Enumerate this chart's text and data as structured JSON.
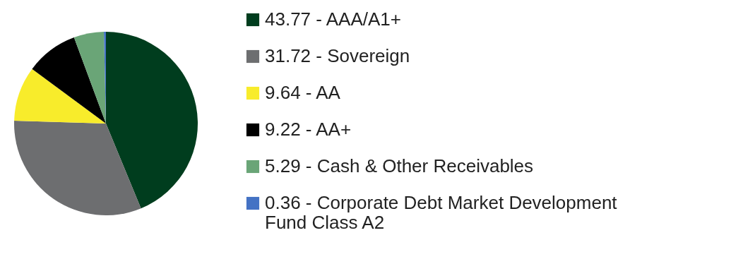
{
  "chart_data": {
    "type": "pie",
    "categories": [
      "43.77 - AAA/A1+",
      "31.72 - Sovereign",
      "9.64 - AA",
      "9.22 - AA+",
      "5.29 - Cash & Other Receivables",
      "0.36 - Corporate Debt Market Development Fund Class A2"
    ],
    "values": [
      43.77,
      31.72,
      9.64,
      9.22,
      5.29,
      0.36
    ],
    "colors": [
      "#003d1e",
      "#6d6e70",
      "#f8ec2b",
      "#000000",
      "#6aa577",
      "#4472c4"
    ],
    "legend": "right"
  }
}
